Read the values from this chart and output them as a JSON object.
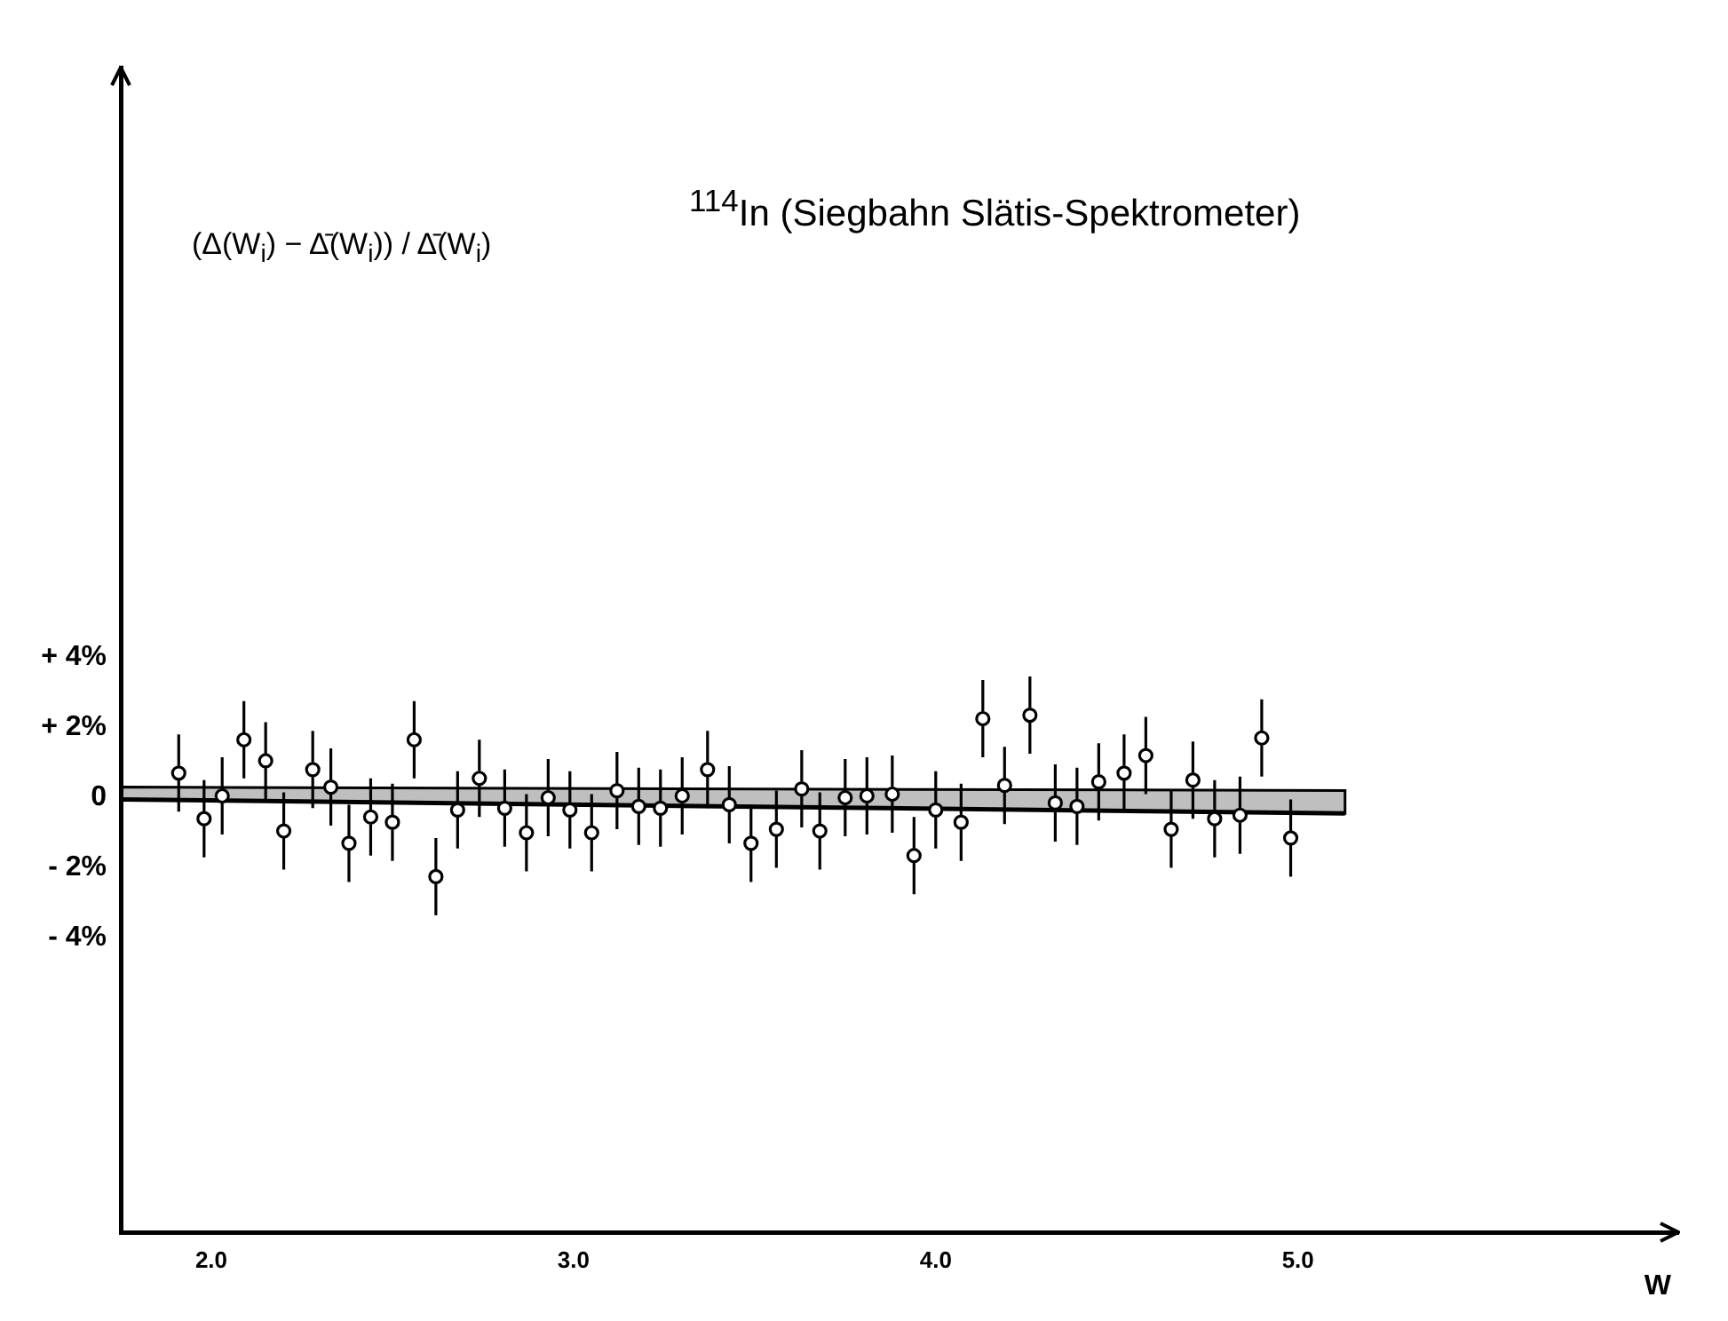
{
  "chart_data": {
    "type": "scatter",
    "title": "$^{114}$In (Siegbahn Slätis-Spektrometer)",
    "ylabel": "(Δ(W$_{i}$) − Δ̄(W$_{i}$)) / Δ̄(W$_{i}$)",
    "xlabel": "W",
    "xlim": [
      1.75,
      6.05
    ],
    "ylim": [
      -12.4,
      20.8
    ],
    "xticks": [
      {
        "value": 2,
        "label": "2.0"
      },
      {
        "value": 3,
        "label": "3.0"
      },
      {
        "value": 4,
        "label": "4.0"
      },
      {
        "value": 5,
        "label": "5.0"
      }
    ],
    "yticks": [
      {
        "value": -4,
        "label": "- 4%"
      },
      {
        "value": -2,
        "label": "- 2%"
      },
      {
        "value": 0,
        "label": "0"
      },
      {
        "value": 2,
        "label": "+ 2%"
      },
      {
        "value": 4,
        "label": "+ 4%"
      }
    ],
    "grid": false,
    "legend": false,
    "series": [
      {
        "color": "#000000",
        "marker": "circle",
        "x": [
          1.91,
          1.98,
          2.03,
          2.09,
          2.15,
          2.2,
          2.28,
          2.33,
          2.38,
          2.44,
          2.5,
          2.56,
          2.62,
          2.68,
          2.74,
          2.81,
          2.87,
          2.93,
          2.99,
          3.05,
          3.12,
          3.18,
          3.24,
          3.3,
          3.37,
          3.43,
          3.49,
          3.56,
          3.63,
          3.68,
          3.75,
          3.81,
          3.88,
          3.94,
          4.0,
          4.07,
          4.13,
          4.19,
          4.26,
          4.33,
          4.39,
          4.45,
          4.52,
          4.58,
          4.65,
          4.71,
          4.77,
          4.84,
          4.9,
          4.98
        ],
        "values": [
          0.7,
          -0.6,
          0.05,
          1.65,
          1.05,
          -0.95,
          0.8,
          0.3,
          -1.3,
          -0.55,
          -0.7,
          1.65,
          -2.25,
          -0.35,
          0.55,
          -0.3,
          -1.0,
          0,
          -0.35,
          -1.0,
          0.2,
          -0.25,
          -0.3,
          0.05,
          0.8,
          -0.2,
          -1.3,
          -0.9,
          0.25,
          -0.95,
          0,
          0.05,
          0.1,
          -1.65,
          -0.35,
          -0.7,
          2.25,
          0.35,
          2.35,
          -0.15,
          -0.25,
          0.45,
          0.7,
          1.2,
          -0.9,
          0.5,
          -0.6,
          -0.5,
          1.7,
          -1.15
        ],
        "errors": [
          1.1,
          1.1,
          1.1,
          1.1,
          1.1,
          1.1,
          1.1,
          1.1,
          1.1,
          1.1,
          1.1,
          1.1,
          1.1,
          1.1,
          1.1,
          1.1,
          1.1,
          1.1,
          1.1,
          1.1,
          1.1,
          1.1,
          1.1,
          1.1,
          1.1,
          1.1,
          1.1,
          1.1,
          1.1,
          1.1,
          1.1,
          1.1,
          1.1,
          1.1,
          1.1,
          1.1,
          1.1,
          1.1,
          1.1,
          1.1,
          1.1,
          1.1,
          1.1,
          1.1,
          1.1,
          1.1,
          1.1,
          1.1,
          1.1,
          1.1
        ]
      },
      {
        "type": "line",
        "color": "#000000",
        "marker": "none",
        "x": [
          1.75,
          5.13
        ],
        "values": [
          -0.05,
          -0.45
        ],
        "lower": [
          -0.05,
          -0.45
        ],
        "upper": [
          0.3,
          0.2
        ]
      }
    ]
  }
}
